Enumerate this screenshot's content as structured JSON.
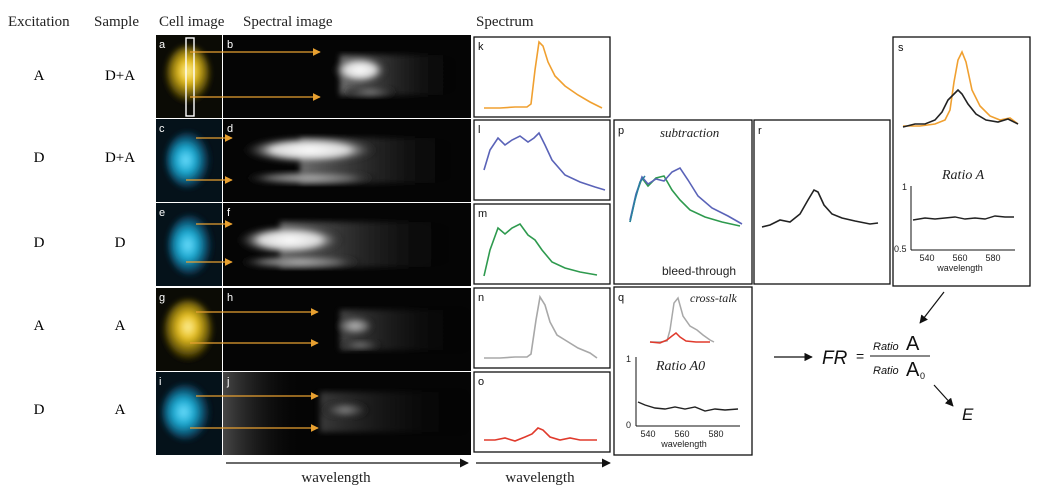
{
  "headers": {
    "excitation": "Excitation",
    "sample": "Sample",
    "cell_image": "Cell image",
    "spectral_image": "Spectral image",
    "spectrum": "Spectrum"
  },
  "rows": [
    {
      "excitation": "A",
      "sample": "D+A",
      "cell_label": "a",
      "cell_color": "#e8c020",
      "spectral_label": "b",
      "spectrum_label": "k",
      "spectrum_color": "#f0a030"
    },
    {
      "excitation": "D",
      "sample": "D+A",
      "cell_label": "c",
      "cell_color": "#20b0d0",
      "spectral_label": "d",
      "spectrum_label": "l",
      "spectrum_color": "#5a63b8"
    },
    {
      "excitation": "D",
      "sample": "D",
      "cell_label": "e",
      "cell_color": "#20b0d0",
      "spectral_label": "f",
      "spectrum_label": "m",
      "spectrum_color": "#2e9a4e"
    },
    {
      "excitation": "A",
      "sample": "A",
      "cell_label": "g",
      "cell_color": "#e8c020",
      "spectral_label": "h",
      "spectrum_label": "n",
      "spectrum_color": "#a8a8a8"
    },
    {
      "excitation": "D",
      "sample": "A",
      "cell_label": "i",
      "cell_color": "#20b0d0",
      "spectral_label": "j",
      "spectrum_label": "o",
      "spectrum_color": "#e03a2c"
    }
  ],
  "axis": {
    "spectral_wavelength": "wavelength",
    "spectrum_wavelength": "wavelength"
  },
  "panel_p": {
    "label": "p",
    "title": "subtraction",
    "note": "bleed-through"
  },
  "panel_q": {
    "label": "q",
    "title": "cross-talk",
    "ratio_label": "Ratio A0",
    "ytick": "1",
    "ytick0": "0",
    "xticks": [
      "540",
      "560",
      "580"
    ],
    "xlabel": "wavelength"
  },
  "panel_r": {
    "label": "r"
  },
  "panel_s": {
    "label": "s",
    "ratio_label": "Ratio A",
    "ytick1": "1",
    "ytick05": "0.5",
    "xticks": [
      "540",
      "560",
      "580"
    ],
    "xlabel": "wavelength"
  },
  "formula": {
    "lhs": "FR",
    "eq": "=",
    "num_small": "Ratio",
    "num_big": "A",
    "den_small": "Ratio",
    "den_big": "A",
    "den_sub": "0",
    "result": "E"
  },
  "colors": {
    "orange": "#f0a030",
    "arrow_orange": "#e8a030",
    "blue": "#5a63b8",
    "green": "#2e9a4e",
    "gray": "#a8a8a8",
    "red": "#e03a2c",
    "black": "#222222"
  }
}
